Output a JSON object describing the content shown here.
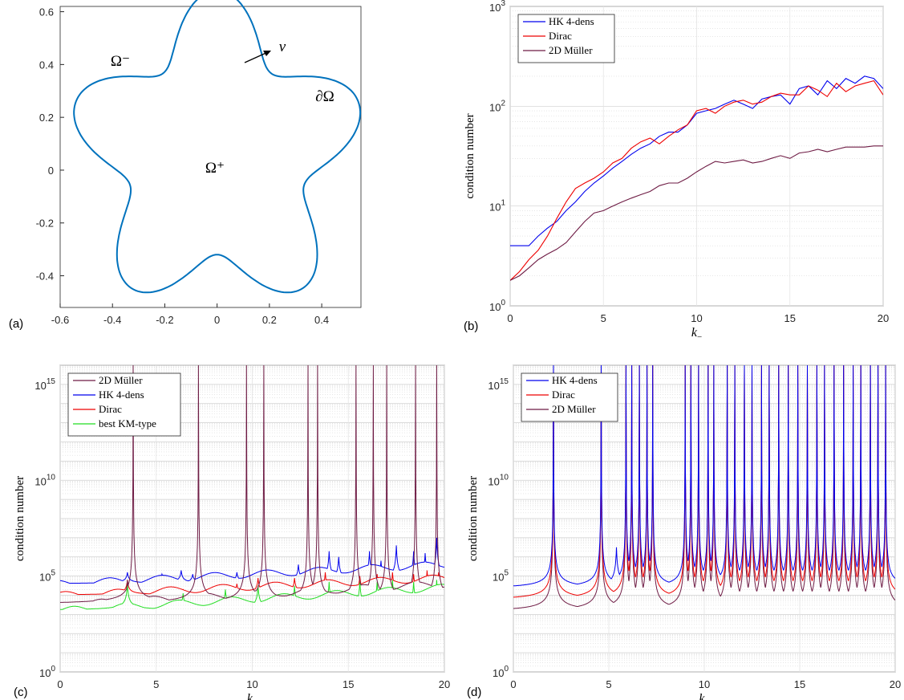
{
  "chart_data": [
    {
      "panel": "(a)",
      "type": "line",
      "title": "",
      "xlabel": "",
      "ylabel": "",
      "xlim": [
        -0.6,
        0.55
      ],
      "ylim": [
        -0.52,
        0.62
      ],
      "xticks": [
        "-0.6",
        "-0.4",
        "-0.2",
        "0",
        "0.2",
        "0.4"
      ],
      "yticks": [
        "-0.4",
        "-0.2",
        "0",
        "0.2",
        "0.4",
        "0.6"
      ],
      "color": "#0072BD",
      "annotations": {
        "outer": "Ω⁻",
        "inner": "Ω⁺",
        "boundary": "∂Ω",
        "normal": "ν"
      },
      "curve": {
        "shape": "five-petal star",
        "r0": 0.5,
        "amplitude": 0.12,
        "lobes": 5,
        "peak_angle_deg": 90
      }
    },
    {
      "panel": "(b)",
      "type": "line",
      "xlabel": "k−",
      "ylabel": "condition number",
      "xlim": [
        0,
        20
      ],
      "ylim": [
        1,
        1000
      ],
      "yscale": "log",
      "xticks": [
        "0",
        "5",
        "10",
        "15",
        "20"
      ],
      "yticks": [
        "10^0",
        "10^1",
        "10^2",
        "10^3"
      ],
      "grid": true,
      "legend_position": "top-left",
      "x": [
        0,
        0.5,
        1,
        1.5,
        2,
        2.5,
        3,
        3.5,
        4,
        4.5,
        5,
        5.5,
        6,
        6.5,
        7,
        7.5,
        8,
        8.5,
        9,
        9.5,
        10,
        10.5,
        11,
        11.5,
        12,
        12.5,
        13,
        13.5,
        14,
        14.5,
        15,
        15.5,
        16,
        16.5,
        17,
        17.5,
        18,
        18.5,
        19,
        19.5,
        20
      ],
      "series": [
        {
          "name": "HK 4-dens",
          "color": "#0000EE",
          "values": [
            4,
            4,
            4,
            5,
            6,
            7,
            9,
            11,
            14,
            17,
            20,
            24,
            28,
            33,
            38,
            42,
            50,
            55,
            55,
            65,
            85,
            90,
            95,
            105,
            115,
            105,
            95,
            118,
            125,
            130,
            105,
            150,
            160,
            130,
            180,
            150,
            190,
            170,
            200,
            190,
            150
          ]
        },
        {
          "name": "Dirac",
          "color": "#EE0000",
          "values": [
            1.8,
            2.2,
            2.9,
            3.6,
            5.0,
            7.5,
            11,
            15,
            17,
            19,
            22,
            27,
            30,
            38,
            44,
            48,
            42,
            50,
            58,
            65,
            90,
            95,
            85,
            100,
            110,
            115,
            105,
            110,
            125,
            135,
            130,
            130,
            160,
            145,
            125,
            170,
            140,
            160,
            170,
            180,
            130
          ]
        },
        {
          "name": "2D Müller",
          "color": "#6E1B44",
          "values": [
            1.8,
            2.0,
            2.4,
            2.9,
            3.3,
            3.7,
            4.3,
            5.5,
            7.0,
            8.5,
            9.0,
            10,
            11,
            12,
            13,
            14,
            16,
            17,
            17,
            19,
            22,
            25,
            28,
            27,
            28,
            29,
            27,
            28,
            30,
            32,
            30,
            34,
            35,
            37,
            35,
            37,
            39,
            39,
            39,
            40,
            40
          ]
        }
      ]
    },
    {
      "panel": "(c)",
      "type": "line",
      "xlabel": "k−",
      "ylabel": "condition number",
      "xlim": [
        0,
        20
      ],
      "ylim": [
        1,
        1e+16
      ],
      "yscale": "log",
      "xticks": [
        "0",
        "5",
        "10",
        "15",
        "20"
      ],
      "yticks": [
        "10^0",
        "10^5",
        "10^10",
        "10^15"
      ],
      "grid": true,
      "legend_position": "top-left",
      "series": [
        {
          "name": "2D Müller",
          "color": "#6E1B44",
          "baseline_exp": 3.5,
          "slope": 0.055,
          "spikes": [
            [
              3.5,
              4.8
            ],
            [
              3.8,
              16
            ],
            [
              7.2,
              16
            ],
            [
              9.7,
              16
            ],
            [
              10.6,
              16
            ],
            [
              12.9,
              16
            ],
            [
              13.4,
              16
            ],
            [
              15.4,
              16
            ],
            [
              16.3,
              16
            ],
            [
              17.0,
              16
            ],
            [
              18.5,
              16
            ],
            [
              19.6,
              16
            ]
          ]
        },
        {
          "name": "HK 4-dens",
          "color": "#0000EE",
          "baseline_exp": 4.6,
          "slope": 0.05,
          "spikes": [
            [
              3.5,
              5.2
            ],
            [
              5.3,
              5.1
            ],
            [
              6.3,
              5.3
            ],
            [
              6.9,
              5.1
            ],
            [
              7.6,
              5.0
            ],
            [
              8.5,
              4.9
            ],
            [
              9.2,
              5.2
            ],
            [
              10.9,
              5.2
            ],
            [
              12.4,
              5.6
            ],
            [
              14.0,
              6.3
            ],
            [
              14.5,
              6.0
            ],
            [
              16.1,
              6.3
            ],
            [
              16.7,
              5.8
            ],
            [
              17.5,
              6.6
            ],
            [
              18.4,
              6.3
            ],
            [
              19.0,
              6.2
            ],
            [
              19.6,
              7.0
            ]
          ]
        },
        {
          "name": "Dirac",
          "color": "#EE0000",
          "baseline_exp": 4.0,
          "slope": 0.045,
          "spikes": [
            [
              3.5,
              4.8
            ],
            [
              6.4,
              4.3
            ],
            [
              8.4,
              4.5
            ],
            [
              9.2,
              4.6
            ],
            [
              10.3,
              4.9
            ],
            [
              12.2,
              4.9
            ],
            [
              13.8,
              5.2
            ],
            [
              15.6,
              5.0
            ],
            [
              16.5,
              5.1
            ],
            [
              17.3,
              5.2
            ],
            [
              18.4,
              5.1
            ],
            [
              19.1,
              5.3
            ],
            [
              19.7,
              5.2
            ]
          ]
        },
        {
          "name": "best KM-type",
          "color": "#22DD22",
          "baseline_exp": 3.2,
          "slope": 0.06,
          "spikes": [
            [
              3.5,
              4.6
            ],
            [
              6.4,
              4.1
            ],
            [
              8.6,
              4.3
            ],
            [
              10.3,
              4.5
            ],
            [
              12.2,
              4.5
            ],
            [
              14.0,
              4.7
            ],
            [
              15.6,
              4.7
            ],
            [
              16.5,
              4.7
            ],
            [
              17.3,
              4.8
            ],
            [
              18.4,
              4.7
            ],
            [
              19.6,
              4.8
            ]
          ]
        }
      ]
    },
    {
      "panel": "(d)",
      "type": "line",
      "xlabel": "k+",
      "ylabel": "condition number",
      "xlim": [
        0,
        20
      ],
      "ylim": [
        1,
        1e+16
      ],
      "yscale": "log",
      "xticks": [
        "0",
        "5",
        "10",
        "15",
        "20"
      ],
      "yticks": [
        "10^0",
        "10^5",
        "10^10",
        "10^15"
      ],
      "grid": true,
      "legend_position": "top-left",
      "series": [
        {
          "name": "HK 4-dens",
          "color": "#0000EE",
          "baseline_exp": 4.3,
          "slope": 0.02,
          "spikes": [
            [
              2.1,
              16
            ],
            [
              4.6,
              16
            ],
            [
              5.4,
              6.5
            ],
            [
              5.9,
              16
            ],
            [
              6.2,
              16
            ],
            [
              6.6,
              16
            ],
            [
              7.0,
              16
            ],
            [
              7.3,
              16
            ],
            [
              9.0,
              16
            ],
            [
              9.3,
              16
            ],
            [
              9.7,
              16
            ],
            [
              10.2,
              16
            ],
            [
              10.5,
              16
            ],
            [
              11.2,
              16
            ],
            [
              11.6,
              16
            ],
            [
              12.1,
              16
            ],
            [
              12.5,
              16
            ],
            [
              13.0,
              16
            ],
            [
              13.4,
              16
            ],
            [
              13.9,
              16
            ],
            [
              14.4,
              16
            ],
            [
              14.9,
              16
            ],
            [
              15.4,
              16
            ],
            [
              15.9,
              16
            ],
            [
              16.3,
              16
            ],
            [
              16.8,
              16
            ],
            [
              17.3,
              16
            ],
            [
              17.8,
              16
            ],
            [
              18.2,
              16
            ],
            [
              18.7,
              16
            ],
            [
              19.1,
              16
            ],
            [
              19.5,
              16
            ]
          ]
        },
        {
          "name": "Dirac",
          "color": "#EE0000",
          "baseline_exp": 3.7,
          "slope": 0.02,
          "spikes": [
            [
              2.1,
              16
            ],
            [
              4.6,
              16
            ],
            [
              5.9,
              16
            ],
            [
              6.2,
              16
            ],
            [
              6.6,
              16
            ],
            [
              7.0,
              16
            ],
            [
              7.3,
              16
            ],
            [
              9.0,
              16
            ],
            [
              9.3,
              16
            ],
            [
              9.7,
              16
            ],
            [
              10.2,
              16
            ],
            [
              10.5,
              16
            ],
            [
              11.2,
              16
            ],
            [
              11.6,
              16
            ],
            [
              12.1,
              16
            ],
            [
              12.5,
              16
            ],
            [
              13.0,
              16
            ],
            [
              13.4,
              16
            ],
            [
              13.9,
              16
            ],
            [
              14.4,
              16
            ],
            [
              14.9,
              16
            ],
            [
              15.4,
              16
            ],
            [
              15.9,
              16
            ],
            [
              16.3,
              16
            ],
            [
              16.8,
              16
            ],
            [
              17.3,
              16
            ],
            [
              17.8,
              16
            ],
            [
              18.2,
              16
            ],
            [
              18.7,
              16
            ],
            [
              19.1,
              16
            ],
            [
              19.5,
              16
            ]
          ]
        },
        {
          "name": "2D Müller",
          "color": "#6E1B44",
          "baseline_exp": 3.1,
          "slope": 0.02,
          "spikes": [
            [
              2.1,
              16
            ],
            [
              4.6,
              16
            ],
            [
              5.9,
              16
            ],
            [
              6.2,
              16
            ],
            [
              6.6,
              16
            ],
            [
              7.0,
              16
            ],
            [
              7.3,
              16
            ],
            [
              9.0,
              16
            ],
            [
              9.3,
              16
            ],
            [
              9.7,
              16
            ],
            [
              10.2,
              16
            ],
            [
              10.5,
              16
            ],
            [
              11.2,
              16
            ],
            [
              11.6,
              16
            ],
            [
              12.1,
              16
            ],
            [
              12.5,
              16
            ],
            [
              13.0,
              16
            ],
            [
              13.4,
              16
            ],
            [
              13.9,
              16
            ],
            [
              14.4,
              16
            ],
            [
              14.9,
              16
            ],
            [
              15.4,
              16
            ],
            [
              15.9,
              16
            ],
            [
              16.3,
              16
            ],
            [
              16.8,
              16
            ],
            [
              17.3,
              16
            ],
            [
              17.8,
              16
            ],
            [
              18.2,
              16
            ],
            [
              18.7,
              16
            ],
            [
              19.1,
              16
            ],
            [
              19.5,
              16
            ]
          ]
        }
      ]
    }
  ]
}
